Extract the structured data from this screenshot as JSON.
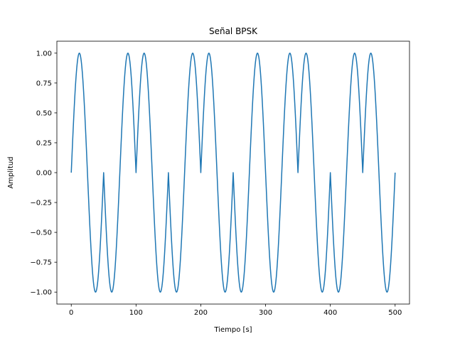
{
  "chart_data": {
    "type": "line",
    "title": "Señal BPSK",
    "xlabel": "Tiempo [s]",
    "ylabel": "Amplitud",
    "xlim": [
      -22.2,
      522.2
    ],
    "ylim": [
      -1.1,
      1.1
    ],
    "xticks": [
      0,
      100,
      200,
      300,
      400,
      500
    ],
    "yticks": [
      -1.0,
      -0.75,
      -0.5,
      -0.25,
      0.0,
      0.25,
      0.5,
      0.75,
      1.0
    ],
    "xtick_labels": [
      "0",
      "100",
      "200",
      "300",
      "400",
      "500"
    ],
    "ytick_labels": [
      "−1.00",
      "−0.75",
      "−0.50",
      "−0.25",
      "0.00",
      "0.25",
      "0.50",
      "0.75",
      "1.00"
    ],
    "grid": false,
    "series": [
      {
        "color": "#1f77b4",
        "carrier_period": 50,
        "bit_duration": 50,
        "bits": [
          0,
          1,
          0,
          1,
          0,
          1,
          1,
          0,
          1,
          0
        ],
        "x_range": [
          0,
          500
        ]
      }
    ]
  }
}
